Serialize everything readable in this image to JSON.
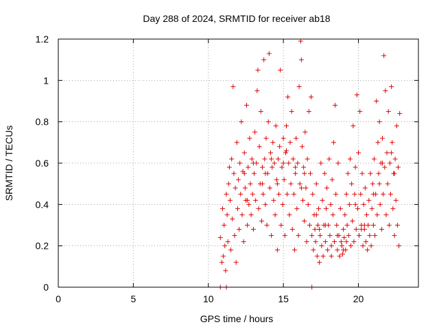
{
  "chart_data": {
    "type": "scatter",
    "title": "Day 288 of 2024, SRMTID for receiver ab18",
    "xlabel": "GPS time / hours",
    "ylabel": "SRMTID / TECUs",
    "xlim": [
      0,
      24
    ],
    "ylim": [
      0,
      1.2
    ],
    "xticks": [
      0,
      5,
      10,
      15,
      20
    ],
    "yticks": [
      0,
      0.2,
      0.4,
      0.6,
      0.8,
      1,
      1.2
    ],
    "xtick_labels": [
      "0",
      "5",
      "10",
      "15",
      "20"
    ],
    "ytick_labels": [
      "0",
      "0.2",
      "0.4",
      "0.6",
      "0.8",
      "1",
      "1.2"
    ],
    "grid": true,
    "marker": "+",
    "color": "#e00000",
    "series": [
      {
        "name": "SRMTID",
        "points": [
          [
            10.8,
            0.0
          ],
          [
            11.2,
            0.0
          ],
          [
            16.9,
            0.0
          ],
          [
            10.8,
            0.24
          ],
          [
            10.9,
            0.12
          ],
          [
            10.95,
            0.38
          ],
          [
            11.0,
            0.15
          ],
          [
            11.05,
            0.3
          ],
          [
            11.1,
            0.2
          ],
          [
            11.15,
            0.08
          ],
          [
            11.2,
            0.45
          ],
          [
            11.25,
            0.35
          ],
          [
            11.3,
            0.22
          ],
          [
            11.35,
            0.5
          ],
          [
            11.4,
            0.58
          ],
          [
            11.45,
            0.42
          ],
          [
            11.5,
            0.18
          ],
          [
            11.55,
            0.62
          ],
          [
            11.6,
            0.33
          ],
          [
            11.65,
            0.97
          ],
          [
            11.7,
            0.55
          ],
          [
            11.75,
            0.25
          ],
          [
            11.8,
            0.48
          ],
          [
            11.85,
            0.12
          ],
          [
            11.9,
            0.7
          ],
          [
            11.95,
            0.38
          ],
          [
            12.0,
            0.52
          ],
          [
            12.05,
            0.28
          ],
          [
            12.1,
            0.6
          ],
          [
            12.15,
            0.45
          ],
          [
            12.2,
            0.8
          ],
          [
            12.25,
            0.35
          ],
          [
            12.3,
            0.56
          ],
          [
            12.35,
            0.22
          ],
          [
            12.4,
            0.65
          ],
          [
            12.45,
            0.48
          ],
          [
            12.5,
            0.42
          ],
          [
            12.55,
            0.88
          ],
          [
            12.6,
            0.3
          ],
          [
            12.65,
            0.58
          ],
          [
            12.7,
            0.4
          ],
          [
            12.75,
            0.72
          ],
          [
            12.8,
            0.5
          ],
          [
            12.85,
            0.35
          ],
          [
            12.9,
            0.62
          ],
          [
            12.95,
            0.45
          ],
          [
            13.0,
            0.28
          ],
          [
            13.05,
            0.55
          ],
          [
            13.1,
            0.75
          ],
          [
            13.15,
            0.42
          ],
          [
            13.2,
            0.6
          ],
          [
            13.25,
            0.95
          ],
          [
            13.3,
            1.05
          ],
          [
            13.35,
            0.38
          ],
          [
            13.4,
            0.68
          ],
          [
            13.45,
            0.5
          ],
          [
            13.5,
            0.85
          ],
          [
            13.55,
            0.32
          ],
          [
            13.6,
            0.58
          ],
          [
            13.65,
            0.45
          ],
          [
            13.7,
            1.1
          ],
          [
            13.75,
            0.62
          ],
          [
            13.8,
            0.4
          ],
          [
            13.85,
            0.72
          ],
          [
            13.9,
            0.3
          ],
          [
            13.95,
            0.55
          ],
          [
            14.0,
            0.8
          ],
          [
            14.05,
            1.13
          ],
          [
            14.1,
            0.48
          ],
          [
            14.15,
            0.65
          ],
          [
            14.2,
            0.25
          ],
          [
            14.25,
            0.58
          ],
          [
            14.3,
            0.7
          ],
          [
            14.35,
            0.42
          ],
          [
            14.4,
            0.6
          ],
          [
            14.45,
            0.35
          ],
          [
            14.5,
            0.78
          ],
          [
            14.55,
            0.52
          ],
          [
            14.6,
            0.18
          ],
          [
            14.65,
            0.62
          ],
          [
            14.7,
            0.45
          ],
          [
            14.75,
            0.68
          ],
          [
            14.8,
            1.05
          ],
          [
            14.85,
            0.3
          ],
          [
            14.9,
            0.58
          ],
          [
            14.95,
            0.4
          ],
          [
            15.0,
            0.72
          ],
          [
            15.05,
            0.52
          ],
          [
            15.1,
            0.25
          ],
          [
            15.15,
            0.65
          ],
          [
            15.2,
            0.78
          ],
          [
            15.25,
            0.45
          ],
          [
            15.3,
            0.92
          ],
          [
            15.35,
            0.6
          ],
          [
            15.4,
            0.35
          ],
          [
            15.45,
            0.7
          ],
          [
            15.5,
            0.5
          ],
          [
            15.55,
            0.85
          ],
          [
            15.6,
            0.28
          ],
          [
            15.65,
            0.62
          ],
          [
            15.7,
            0.45
          ],
          [
            15.75,
            0.18
          ],
          [
            15.8,
            0.55
          ],
          [
            15.85,
            0.72
          ],
          [
            15.9,
            0.38
          ],
          [
            15.95,
            0.6
          ],
          [
            16.0,
            0.25
          ],
          [
            16.05,
            0.97
          ],
          [
            16.1,
            0.5
          ],
          [
            16.15,
            1.19
          ],
          [
            16.2,
            1.1
          ],
          [
            16.25,
            0.68
          ],
          [
            16.3,
            0.42
          ],
          [
            16.35,
            0.58
          ],
          [
            16.4,
            0.32
          ],
          [
            16.45,
            0.75
          ],
          [
            16.5,
            0.48
          ],
          [
            16.55,
            0.22
          ],
          [
            16.6,
            0.62
          ],
          [
            16.65,
            0.4
          ],
          [
            16.7,
            0.85
          ],
          [
            16.75,
            0.3
          ],
          [
            16.8,
            0.55
          ],
          [
            16.85,
            0.92
          ],
          [
            16.9,
            0.25
          ],
          [
            16.95,
            0.45
          ],
          [
            17.0,
            0.18
          ],
          [
            17.05,
            0.35
          ],
          [
            17.1,
            0.28
          ],
          [
            17.15,
            0.22
          ],
          [
            17.2,
            0.5
          ],
          [
            17.25,
            0.15
          ],
          [
            17.3,
            0.3
          ],
          [
            17.35,
            0.38
          ],
          [
            17.4,
            0.12
          ],
          [
            17.45,
            0.25
          ],
          [
            17.5,
            0.6
          ],
          [
            17.55,
            0.2
          ],
          [
            17.6,
            0.42
          ],
          [
            17.65,
            0.15
          ],
          [
            17.7,
            0.3
          ],
          [
            17.75,
            0.55
          ],
          [
            17.8,
            0.22
          ],
          [
            17.85,
            0.38
          ],
          [
            17.9,
            0.48
          ],
          [
            17.95,
            0.18
          ],
          [
            18.0,
            0.3
          ],
          [
            18.05,
            0.62
          ],
          [
            18.1,
            0.25
          ],
          [
            18.15,
            0.4
          ],
          [
            18.2,
            0.15
          ],
          [
            18.25,
            0.52
          ],
          [
            18.3,
            0.35
          ],
          [
            18.35,
            0.7
          ],
          [
            18.4,
            0.22
          ],
          [
            18.45,
            0.88
          ],
          [
            18.5,
            0.45
          ],
          [
            18.55,
            0.3
          ],
          [
            18.6,
            0.18
          ],
          [
            18.65,
            0.6
          ],
          [
            18.7,
            0.25
          ],
          [
            18.75,
            0.15
          ],
          [
            18.8,
            0.38
          ],
          [
            18.85,
            0.22
          ],
          [
            18.9,
            0.2
          ],
          [
            18.95,
            0.16
          ],
          [
            19.0,
            0.28
          ],
          [
            19.05,
            0.24
          ],
          [
            19.1,
            0.35
          ],
          [
            19.15,
            0.18
          ],
          [
            19.2,
            0.45
          ],
          [
            19.25,
            0.3
          ],
          [
            19.3,
            0.55
          ],
          [
            19.35,
            0.25
          ],
          [
            19.4,
            0.4
          ],
          [
            19.45,
            0.62
          ],
          [
            19.5,
            0.2
          ],
          [
            19.55,
            0.5
          ],
          [
            19.6,
            0.32
          ],
          [
            19.65,
            0.78
          ],
          [
            19.7,
            0.22
          ],
          [
            19.75,
            0.45
          ],
          [
            19.8,
            0.58
          ],
          [
            19.85,
            0.28
          ],
          [
            19.9,
            0.93
          ],
          [
            19.95,
            0.38
          ],
          [
            20.0,
            0.65
          ],
          [
            20.05,
            0.25
          ],
          [
            20.1,
            0.85
          ],
          [
            20.15,
            0.45
          ],
          [
            20.2,
            0.3
          ],
          [
            20.25,
            0.55
          ],
          [
            20.3,
            0.2
          ],
          [
            20.35,
            0.4
          ],
          [
            20.4,
            0.28
          ],
          [
            20.45,
            0.48
          ],
          [
            20.5,
            0.22
          ],
          [
            20.55,
            0.35
          ],
          [
            20.6,
            0.18
          ],
          [
            20.65,
            0.3
          ],
          [
            20.7,
            0.42
          ],
          [
            20.75,
            0.25
          ],
          [
            20.8,
            0.55
          ],
          [
            20.85,
            0.2
          ],
          [
            20.9,
            0.38
          ],
          [
            20.95,
            0.5
          ],
          [
            21.0,
            0.3
          ],
          [
            21.05,
            0.62
          ],
          [
            21.1,
            0.25
          ],
          [
            21.15,
            0.45
          ],
          [
            21.2,
            0.9
          ],
          [
            21.25,
            0.35
          ],
          [
            21.3,
            0.7
          ],
          [
            21.35,
            0.55
          ],
          [
            21.4,
            0.8
          ],
          [
            21.45,
            0.4
          ],
          [
            21.5,
            0.6
          ],
          [
            21.55,
            0.28
          ],
          [
            21.6,
            0.72
          ],
          [
            21.65,
            0.45
          ],
          [
            21.7,
            1.12
          ],
          [
            21.75,
            0.58
          ],
          [
            21.8,
            0.95
          ],
          [
            21.85,
            0.35
          ],
          [
            21.9,
            0.65
          ],
          [
            21.95,
            0.5
          ],
          [
            22.0,
            0.85
          ],
          [
            22.05,
            0.3
          ],
          [
            22.1,
            0.6
          ],
          [
            22.15,
            0.45
          ],
          [
            22.2,
            0.97
          ],
          [
            22.25,
            0.7
          ],
          [
            22.3,
            0.38
          ],
          [
            22.35,
            0.55
          ],
          [
            22.4,
            0.25
          ],
          [
            22.45,
            0.62
          ],
          [
            22.5,
            0.42
          ],
          [
            22.55,
            0.78
          ],
          [
            22.6,
            0.3
          ],
          [
            22.65,
            0.58
          ],
          [
            22.7,
            0.2
          ],
          [
            22.75,
            0.84
          ],
          [
            12.4,
            0.55
          ],
          [
            13.0,
            0.6
          ],
          [
            13.6,
            0.5
          ],
          [
            14.2,
            0.62
          ],
          [
            14.6,
            0.5
          ],
          [
            15.2,
            0.66
          ],
          [
            15.8,
            0.58
          ],
          [
            16.4,
            0.55
          ],
          [
            17.2,
            0.35
          ],
          [
            17.8,
            0.3
          ],
          [
            18.6,
            0.25
          ],
          [
            19.2,
            0.22
          ],
          [
            19.8,
            0.4
          ],
          [
            20.4,
            0.3
          ],
          [
            21.0,
            0.45
          ],
          [
            21.6,
            0.6
          ],
          [
            22.2,
            0.65
          ],
          [
            12.6,
            0.42
          ],
          [
            13.8,
            0.55
          ],
          [
            15.0,
            0.6
          ],
          [
            16.2,
            0.48
          ],
          [
            17.4,
            0.28
          ],
          [
            18.2,
            0.2
          ],
          [
            19.0,
            0.18
          ],
          [
            20.2,
            0.28
          ],
          [
            21.4,
            0.5
          ],
          [
            22.4,
            0.55
          ]
        ]
      }
    ]
  }
}
